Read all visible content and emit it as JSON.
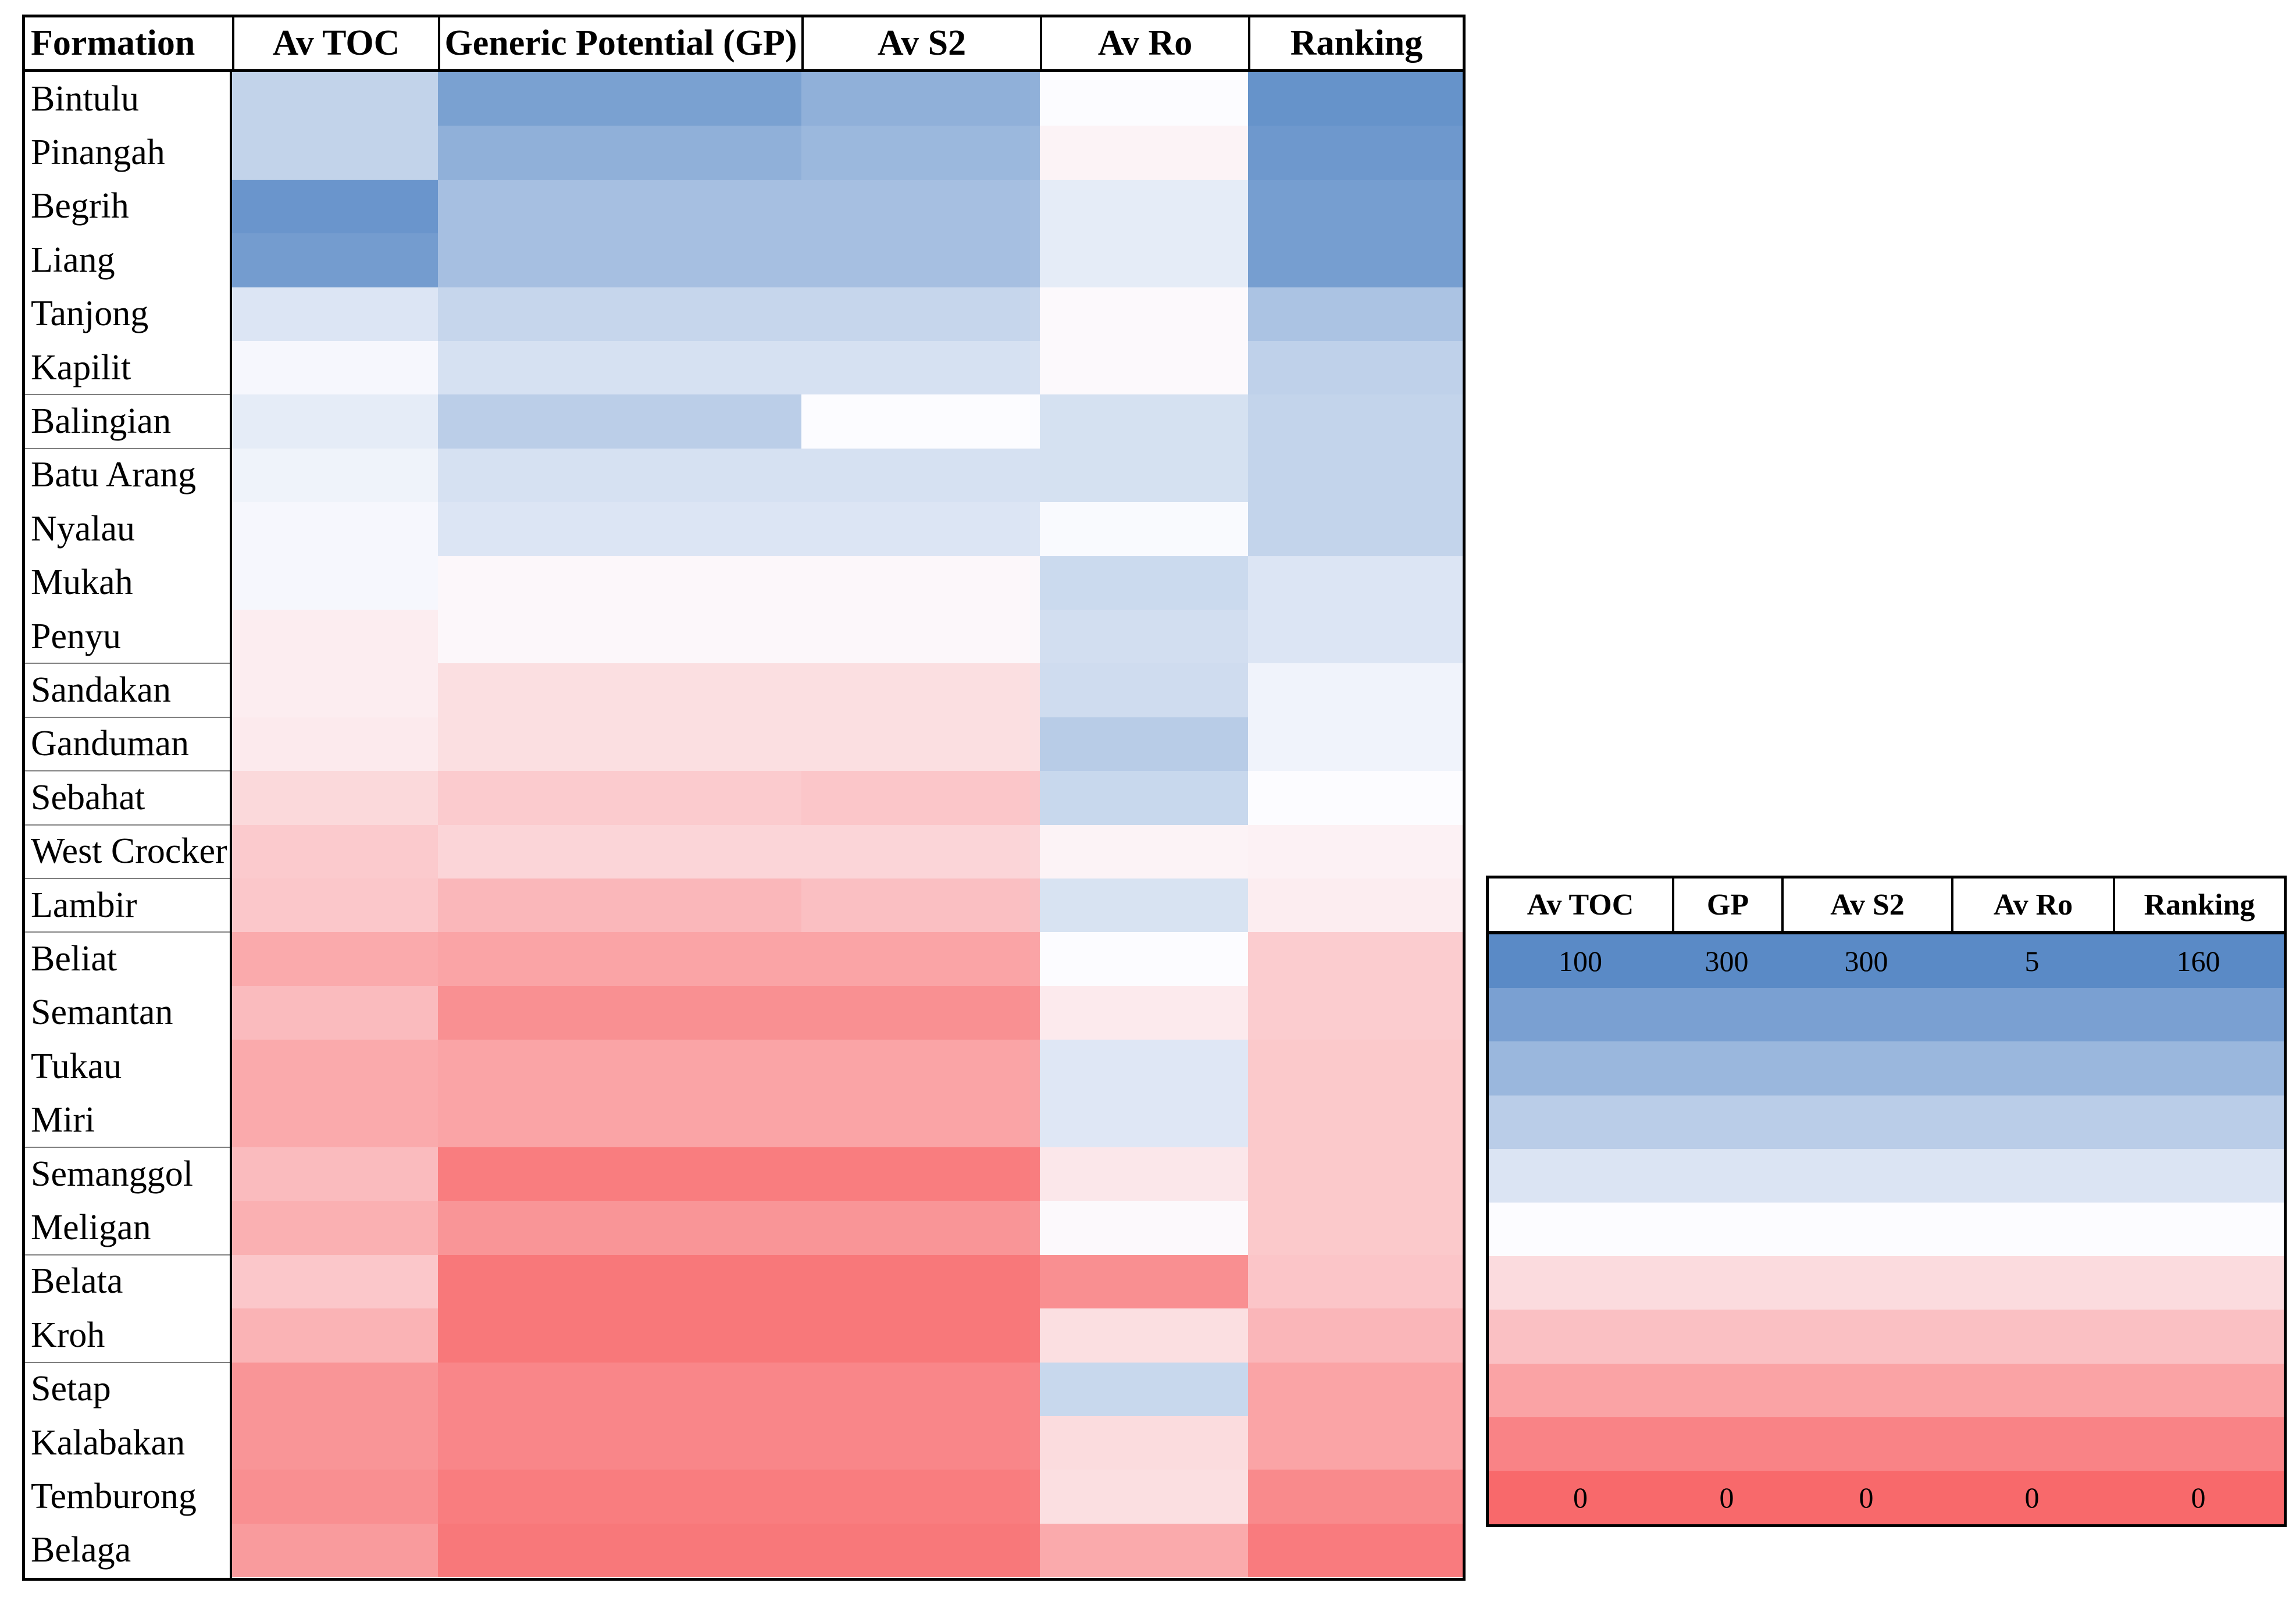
{
  "chart_data": {
    "type": "heatmap",
    "columns": [
      "Formation",
      "Av TOC",
      "Generic Potential (GP)",
      "Av S2",
      "Av Ro",
      "Ranking"
    ],
    "scale_low_color": "#F8696B",
    "scale_mid_color": "#FCFCFF",
    "scale_high_color": "#5A8AC6",
    "rows": [
      {
        "formation": "Bintulu",
        "values": [
          68,
          270,
          250,
          2.5,
          154
        ]
      },
      {
        "formation": "Pinangah",
        "values": [
          68,
          250,
          240,
          2.35,
          150
        ]
      },
      {
        "formation": "Begrih",
        "values": [
          95,
          230,
          230,
          2.85,
          146
        ]
      },
      {
        "formation": "Liang",
        "values": [
          92,
          230,
          230,
          2.85,
          146
        ]
      },
      {
        "formation": "Tanjong",
        "values": [
          60,
          200,
          200,
          2.45,
          120
        ]
      },
      {
        "formation": "Kapilit",
        "values": [
          52,
          185,
          185,
          2.45,
          110
        ]
      },
      {
        "formation": "Balingian",
        "values": [
          57,
          210,
          150,
          3.1,
          108
        ]
      },
      {
        "formation": "Batu Arang",
        "values": [
          54,
          185,
          185,
          3.1,
          108
        ]
      },
      {
        "formation": "Nyalau",
        "values": [
          52,
          180,
          180,
          2.55,
          108
        ]
      },
      {
        "formation": "Mukah",
        "values": [
          52,
          145,
          145,
          3.25,
          96
        ]
      },
      {
        "formation": "Penyu",
        "values": [
          45,
          145,
          145,
          3.15,
          96
        ]
      },
      {
        "formation": "Sandakan",
        "values": [
          45,
          120,
          120,
          3.2,
          86
        ]
      },
      {
        "formation": "Ganduman",
        "values": [
          44,
          120,
          120,
          3.55,
          86
        ]
      },
      {
        "formation": "Sebahat",
        "values": [
          38,
          100,
          95,
          3.3,
          80
        ]
      },
      {
        "formation": "West Crocker",
        "values": [
          33,
          110,
          110,
          2.35,
          74
        ]
      },
      {
        "formation": "Lambir",
        "values": [
          32,
          80,
          88,
          3.05,
          72
        ]
      },
      {
        "formation": "Beliat",
        "values": [
          22,
          60,
          60,
          2.5,
          54
        ]
      },
      {
        "formation": "Semantan",
        "values": [
          28,
          40,
          40,
          2.2,
          54
        ]
      },
      {
        "formation": "Tukau",
        "values": [
          22,
          60,
          60,
          2.95,
          52
        ]
      },
      {
        "formation": "Miri",
        "values": [
          22,
          60,
          60,
          2.95,
          52
        ]
      },
      {
        "formation": "Semanggol",
        "values": [
          28,
          20,
          20,
          2.15,
          52
        ]
      },
      {
        "formation": "Meligan",
        "values": [
          24,
          45,
          45,
          2.45,
          52
        ]
      },
      {
        "formation": "Belata",
        "values": [
          32,
          15,
          15,
          0.65,
          50
        ]
      },
      {
        "formation": "Kroh",
        "values": [
          25,
          15,
          15,
          2.0,
          42
        ]
      },
      {
        "formation": "Setap",
        "values": [
          15,
          30,
          30,
          3.3,
          32
        ]
      },
      {
        "formation": "Kalabakan",
        "values": [
          15,
          30,
          30,
          1.95,
          32
        ]
      },
      {
        "formation": "Temburong",
        "values": [
          13,
          20,
          20,
          2.0,
          18
        ]
      },
      {
        "formation": "Belaga",
        "values": [
          17,
          15,
          15,
          1.1,
          10
        ]
      }
    ],
    "legend": {
      "headers": [
        "Av TOC",
        "GP",
        "Av S2",
        "Av Ro",
        "Ranking"
      ],
      "max": [
        100,
        300,
        300,
        5,
        160
      ],
      "min": [
        0,
        0,
        0,
        0,
        0
      ],
      "band_colors": [
        "#5A8AC6",
        "#7AA0D2",
        "#9AB7DD",
        "#BACDE8",
        "#DBE4F3",
        "#FCFCFF",
        "#FBDBDE",
        "#FAC0C3",
        "#FAA3A5",
        "#F98386",
        "#F8696B"
      ]
    }
  }
}
